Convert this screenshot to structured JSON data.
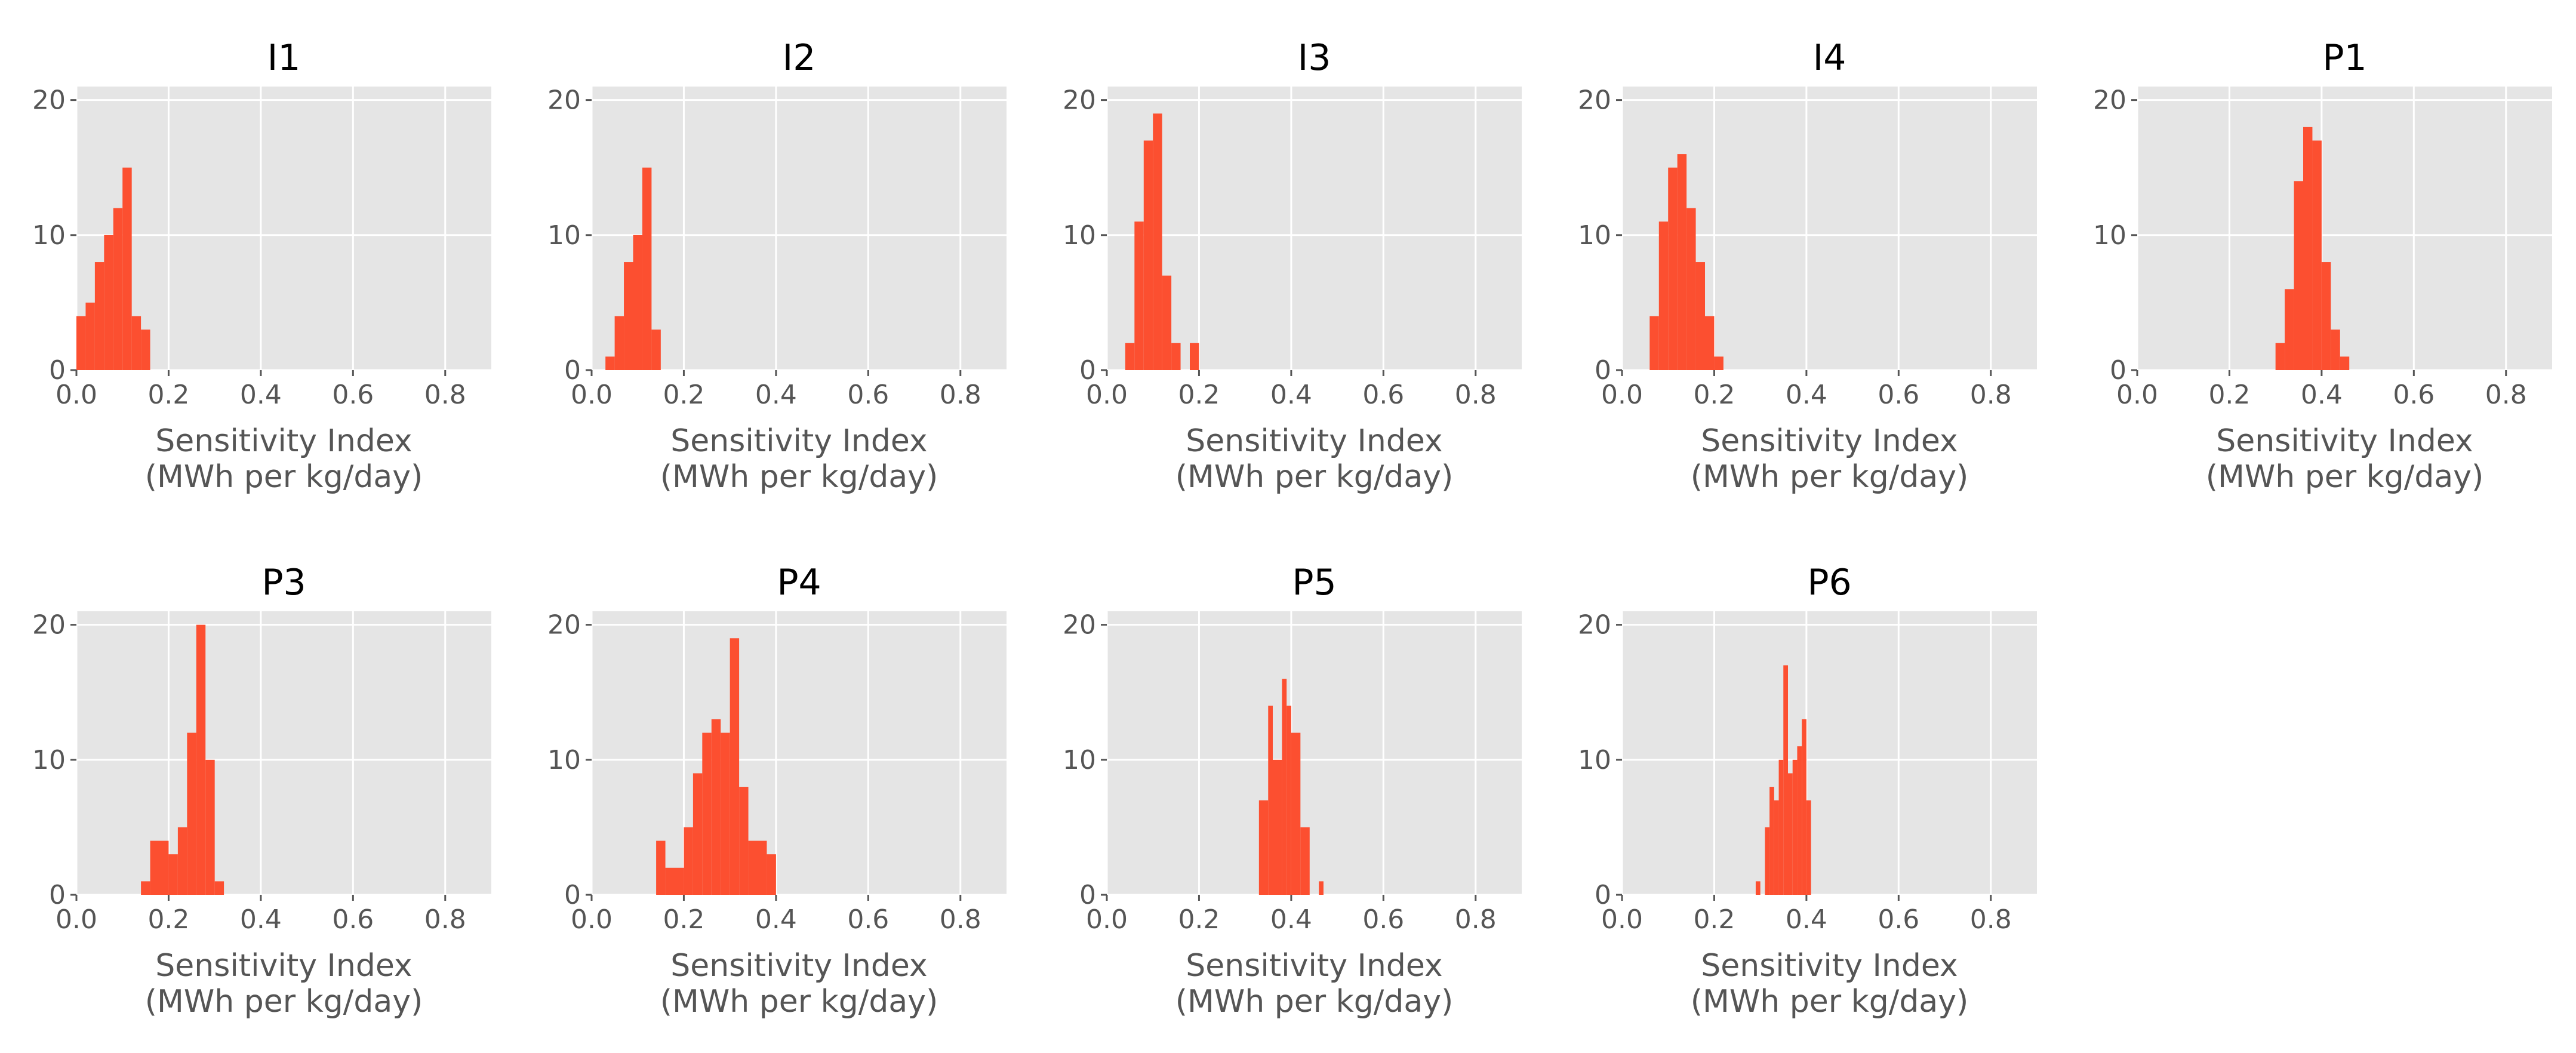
{
  "chart_data": [
    {
      "type": "bar",
      "title": "I1",
      "xlabel": [
        "Sensitivity Index",
        "(MWh per kg/day)"
      ],
      "ylabel": "",
      "xlim": [
        0,
        0.9
      ],
      "ylim": [
        0,
        21
      ],
      "xticks": [
        "0.0",
        "0.2",
        "0.4",
        "0.6",
        "0.8"
      ],
      "yticks": [
        "0",
        "10",
        "20"
      ],
      "grid": true,
      "bins": [
        {
          "x0": 0.0,
          "x1": 0.02,
          "count": 4
        },
        {
          "x0": 0.02,
          "x1": 0.04,
          "count": 5
        },
        {
          "x0": 0.04,
          "x1": 0.06,
          "count": 8
        },
        {
          "x0": 0.06,
          "x1": 0.08,
          "count": 10
        },
        {
          "x0": 0.08,
          "x1": 0.1,
          "count": 12
        },
        {
          "x0": 0.1,
          "x1": 0.12,
          "count": 15
        },
        {
          "x0": 0.12,
          "x1": 0.14,
          "count": 4
        },
        {
          "x0": 0.14,
          "x1": 0.16,
          "count": 3
        }
      ]
    },
    {
      "type": "bar",
      "title": "I2",
      "xlabel": [
        "Sensitivity Index",
        "(MWh per kg/day)"
      ],
      "ylabel": "",
      "xlim": [
        0,
        0.9
      ],
      "ylim": [
        0,
        21
      ],
      "xticks": [
        "0.0",
        "0.2",
        "0.4",
        "0.6",
        "0.8"
      ],
      "yticks": [
        "0",
        "10",
        "20"
      ],
      "grid": true,
      "bins": [
        {
          "x0": 0.03,
          "x1": 0.05,
          "count": 1
        },
        {
          "x0": 0.05,
          "x1": 0.07,
          "count": 4
        },
        {
          "x0": 0.07,
          "x1": 0.09,
          "count": 8
        },
        {
          "x0": 0.09,
          "x1": 0.11,
          "count": 10
        },
        {
          "x0": 0.11,
          "x1": 0.13,
          "count": 15
        },
        {
          "x0": 0.13,
          "x1": 0.15,
          "count": 3
        }
      ]
    },
    {
      "type": "bar",
      "title": "I3",
      "xlabel": [
        "Sensitivity Index",
        "(MWh per kg/day)"
      ],
      "ylabel": "",
      "xlim": [
        0,
        0.9
      ],
      "ylim": [
        0,
        21
      ],
      "xticks": [
        "0.0",
        "0.2",
        "0.4",
        "0.6",
        "0.8"
      ],
      "yticks": [
        "0",
        "10",
        "20"
      ],
      "grid": true,
      "bins": [
        {
          "x0": 0.04,
          "x1": 0.06,
          "count": 2
        },
        {
          "x0": 0.06,
          "x1": 0.08,
          "count": 11
        },
        {
          "x0": 0.08,
          "x1": 0.1,
          "count": 17
        },
        {
          "x0": 0.1,
          "x1": 0.12,
          "count": 19
        },
        {
          "x0": 0.12,
          "x1": 0.14,
          "count": 7
        },
        {
          "x0": 0.14,
          "x1": 0.16,
          "count": 2
        },
        {
          "x0": 0.18,
          "x1": 0.2,
          "count": 2
        }
      ]
    },
    {
      "type": "bar",
      "title": "I4",
      "xlabel": [
        "Sensitivity Index",
        "(MWh per kg/day)"
      ],
      "ylabel": "",
      "xlim": [
        0,
        0.9
      ],
      "ylim": [
        0,
        21
      ],
      "xticks": [
        "0.0",
        "0.2",
        "0.4",
        "0.6",
        "0.8"
      ],
      "yticks": [
        "0",
        "10",
        "20"
      ],
      "grid": true,
      "bins": [
        {
          "x0": 0.06,
          "x1": 0.08,
          "count": 4
        },
        {
          "x0": 0.08,
          "x1": 0.1,
          "count": 11
        },
        {
          "x0": 0.1,
          "x1": 0.12,
          "count": 15
        },
        {
          "x0": 0.12,
          "x1": 0.14,
          "count": 16
        },
        {
          "x0": 0.14,
          "x1": 0.16,
          "count": 12
        },
        {
          "x0": 0.16,
          "x1": 0.18,
          "count": 8
        },
        {
          "x0": 0.18,
          "x1": 0.2,
          "count": 4
        },
        {
          "x0": 0.2,
          "x1": 0.22,
          "count": 1
        }
      ]
    },
    {
      "type": "bar",
      "title": "P1",
      "xlabel": [
        "Sensitivity Index",
        "(MWh per kg/day)"
      ],
      "ylabel": "",
      "xlim": [
        0,
        0.9
      ],
      "ylim": [
        0,
        21
      ],
      "xticks": [
        "0.0",
        "0.2",
        "0.4",
        "0.6",
        "0.8"
      ],
      "yticks": [
        "0",
        "10",
        "20"
      ],
      "grid": true,
      "bins": [
        {
          "x0": 0.3,
          "x1": 0.32,
          "count": 2
        },
        {
          "x0": 0.32,
          "x1": 0.34,
          "count": 6
        },
        {
          "x0": 0.34,
          "x1": 0.36,
          "count": 14
        },
        {
          "x0": 0.36,
          "x1": 0.38,
          "count": 18
        },
        {
          "x0": 0.38,
          "x1": 0.4,
          "count": 17
        },
        {
          "x0": 0.4,
          "x1": 0.42,
          "count": 8
        },
        {
          "x0": 0.42,
          "x1": 0.44,
          "count": 3
        },
        {
          "x0": 0.44,
          "x1": 0.46,
          "count": 1
        }
      ]
    },
    {
      "type": "bar",
      "title": "P3",
      "xlabel": [
        "Sensitivity Index",
        "(MWh per kg/day)"
      ],
      "ylabel": "",
      "xlim": [
        0,
        0.9
      ],
      "ylim": [
        0,
        21
      ],
      "xticks": [
        "0.0",
        "0.2",
        "0.4",
        "0.6",
        "0.8"
      ],
      "yticks": [
        "0",
        "10",
        "20"
      ],
      "grid": true,
      "bins": [
        {
          "x0": 0.14,
          "x1": 0.16,
          "count": 1
        },
        {
          "x0": 0.16,
          "x1": 0.2,
          "count": 4
        },
        {
          "x0": 0.2,
          "x1": 0.22,
          "count": 3
        },
        {
          "x0": 0.22,
          "x1": 0.24,
          "count": 5
        },
        {
          "x0": 0.24,
          "x1": 0.26,
          "count": 12
        },
        {
          "x0": 0.26,
          "x1": 0.28,
          "count": 20
        },
        {
          "x0": 0.28,
          "x1": 0.3,
          "count": 10
        },
        {
          "x0": 0.3,
          "x1": 0.32,
          "count": 1
        }
      ]
    },
    {
      "type": "bar",
      "title": "P4",
      "xlabel": [
        "Sensitivity Index",
        "(MWh per kg/day)"
      ],
      "ylabel": "",
      "xlim": [
        0,
        0.9
      ],
      "ylim": [
        0,
        21
      ],
      "xticks": [
        "0.0",
        "0.2",
        "0.4",
        "0.6",
        "0.8"
      ],
      "yticks": [
        "0",
        "10",
        "20"
      ],
      "grid": true,
      "bins": [
        {
          "x0": 0.14,
          "x1": 0.16,
          "count": 4
        },
        {
          "x0": 0.16,
          "x1": 0.2,
          "count": 2
        },
        {
          "x0": 0.2,
          "x1": 0.22,
          "count": 5
        },
        {
          "x0": 0.22,
          "x1": 0.24,
          "count": 9
        },
        {
          "x0": 0.24,
          "x1": 0.26,
          "count": 12
        },
        {
          "x0": 0.26,
          "x1": 0.28,
          "count": 13
        },
        {
          "x0": 0.28,
          "x1": 0.3,
          "count": 12
        },
        {
          "x0": 0.3,
          "x1": 0.32,
          "count": 19
        },
        {
          "x0": 0.32,
          "x1": 0.34,
          "count": 8
        },
        {
          "x0": 0.34,
          "x1": 0.36,
          "count": 4
        },
        {
          "x0": 0.36,
          "x1": 0.38,
          "count": 4
        },
        {
          "x0": 0.38,
          "x1": 0.4,
          "count": 3
        }
      ]
    },
    {
      "type": "bar",
      "title": "P5",
      "xlabel": [
        "Sensitivity Index",
        "(MWh per kg/day)"
      ],
      "ylabel": "",
      "xlim": [
        0,
        0.9
      ],
      "ylim": [
        0,
        21
      ],
      "xticks": [
        "0.0",
        "0.2",
        "0.4",
        "0.6",
        "0.8"
      ],
      "yticks": [
        "0",
        "10",
        "20"
      ],
      "grid": true,
      "bins": [
        {
          "x0": 0.33,
          "x1": 0.35,
          "count": 7
        },
        {
          "x0": 0.35,
          "x1": 0.36,
          "count": 14
        },
        {
          "x0": 0.36,
          "x1": 0.38,
          "count": 10
        },
        {
          "x0": 0.38,
          "x1": 0.39,
          "count": 16
        },
        {
          "x0": 0.39,
          "x1": 0.4,
          "count": 14
        },
        {
          "x0": 0.4,
          "x1": 0.42,
          "count": 12
        },
        {
          "x0": 0.42,
          "x1": 0.44,
          "count": 5
        },
        {
          "x0": 0.46,
          "x1": 0.47,
          "count": 1
        }
      ]
    },
    {
      "type": "bar",
      "title": "P6",
      "xlabel": [
        "Sensitivity Index",
        "(MWh per kg/day)"
      ],
      "ylabel": "",
      "xlim": [
        0,
        0.9
      ],
      "ylim": [
        0,
        21
      ],
      "xticks": [
        "0.0",
        "0.2",
        "0.4",
        "0.6",
        "0.8"
      ],
      "yticks": [
        "0",
        "10",
        "20"
      ],
      "grid": true,
      "bins": [
        {
          "x0": 0.29,
          "x1": 0.3,
          "count": 1
        },
        {
          "x0": 0.31,
          "x1": 0.32,
          "count": 5
        },
        {
          "x0": 0.32,
          "x1": 0.33,
          "count": 8
        },
        {
          "x0": 0.33,
          "x1": 0.34,
          "count": 7
        },
        {
          "x0": 0.34,
          "x1": 0.35,
          "count": 10
        },
        {
          "x0": 0.35,
          "x1": 0.36,
          "count": 17
        },
        {
          "x0": 0.36,
          "x1": 0.37,
          "count": 9
        },
        {
          "x0": 0.37,
          "x1": 0.38,
          "count": 10
        },
        {
          "x0": 0.38,
          "x1": 0.39,
          "count": 11
        },
        {
          "x0": 0.39,
          "x1": 0.4,
          "count": 13
        },
        {
          "x0": 0.4,
          "x1": 0.41,
          "count": 7
        }
      ]
    }
  ],
  "colors": {
    "bar": "#fc4f30",
    "panel_background": "#e5e5e5",
    "grid": "#ffffff",
    "tick_text": "#555555",
    "title_text": "#000000"
  }
}
